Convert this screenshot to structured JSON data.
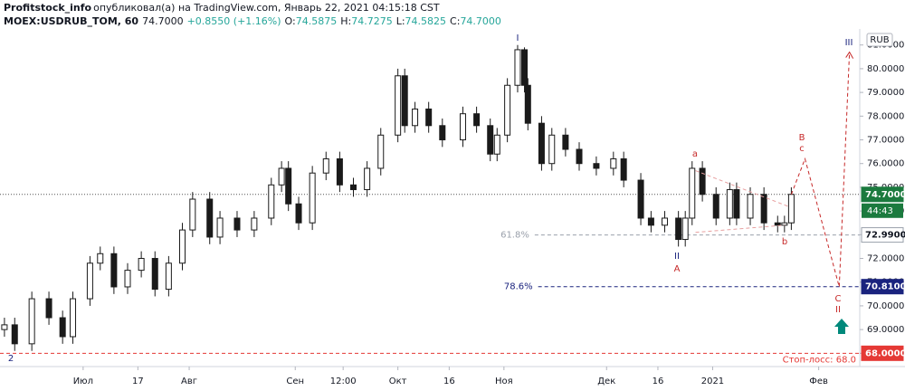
{
  "header": {
    "author": "Profitstock_info",
    "published": "опубликовал(а) на TradingView.com, Январь 22, 2021 04:15:18 CST",
    "symbol": "MOEX:USDRUB_TOM, 60",
    "last": "74.7000",
    "change": "+0.8550 (+1.16%)",
    "open_label": "O:",
    "open": "74.5875",
    "high_label": "H:",
    "high": "74.7275",
    "low_label": "L:",
    "low": "74.5825",
    "close_label": "C:",
    "close": "74.7000"
  },
  "chart_data": {
    "type": "candlestick",
    "currency": "RUB",
    "color": "#1a1a1a",
    "xlim": [
      -24.3,
      227
    ],
    "ylim": [
      67.44,
      82.21
    ],
    "xticks": [
      {
        "value": 0,
        "label": "Июл"
      },
      {
        "value": 16,
        "label": "17"
      },
      {
        "value": 31,
        "label": "Авг"
      },
      {
        "value": 62,
        "label": "Сен"
      },
      {
        "value": 76,
        "label": "12:00"
      },
      {
        "value": 92,
        "label": "Окт"
      },
      {
        "value": 107,
        "label": "16"
      },
      {
        "value": 123,
        "label": "Ноя"
      },
      {
        "value": 153,
        "label": "Дек"
      },
      {
        "value": 168,
        "label": "16"
      },
      {
        "value": 184,
        "label": "2021"
      },
      {
        "value": 215,
        "label": "Фев"
      }
    ],
    "yticks": [
      {
        "value": 68,
        "label": "68.0000"
      },
      {
        "value": 69,
        "label": "69.0000"
      },
      {
        "value": 70,
        "label": "70.0000"
      },
      {
        "value": 71,
        "label": "71.0000"
      },
      {
        "value": 72,
        "label": "72.0000"
      },
      {
        "value": 73,
        "label": "73.0000"
      },
      {
        "value": 74,
        "label": "74.0000"
      },
      {
        "value": 75,
        "label": "75.0000"
      },
      {
        "value": 76,
        "label": "76.0000"
      },
      {
        "value": 77,
        "label": "77.0000"
      },
      {
        "value": 78,
        "label": "78.0000"
      },
      {
        "value": 79,
        "label": "79.0000"
      },
      {
        "value": 80,
        "label": "80.0000"
      },
      {
        "value": 81,
        "label": "81.0000"
      }
    ],
    "x": [
      -23,
      -20,
      -15,
      -10,
      -6,
      -3,
      2,
      5,
      9,
      13,
      17,
      21,
      25,
      29,
      32,
      37,
      40,
      45,
      50,
      55,
      58,
      60,
      63,
      67,
      71,
      75,
      79,
      83,
      87,
      92,
      94,
      97,
      101,
      105,
      111,
      115,
      119,
      121,
      124,
      127,
      129,
      130,
      134,
      137,
      141,
      145,
      150,
      155,
      158,
      163,
      166,
      170,
      174,
      176,
      178,
      181,
      185,
      189,
      191,
      195,
      199,
      203,
      205,
      207
    ],
    "open": [
      69.0,
      69.2,
      68.4,
      70.3,
      69.5,
      68.7,
      70.3,
      71.8,
      72.2,
      70.8,
      71.5,
      72.0,
      70.7,
      71.8,
      73.2,
      74.5,
      72.9,
      73.7,
      73.2,
      73.7,
      75.1,
      75.8,
      74.3,
      73.5,
      75.6,
      76.2,
      75.1,
      74.9,
      75.8,
      77.2,
      79.7,
      77.6,
      78.3,
      77.6,
      77.0,
      78.1,
      77.6,
      76.4,
      77.2,
      79.3,
      80.8,
      79.3,
      77.7,
      76.0,
      77.2,
      76.6,
      76.0,
      75.8,
      76.2,
      75.3,
      73.7,
      73.4,
      73.7,
      72.8,
      73.7,
      75.8,
      74.7,
      73.7,
      74.9,
      73.7,
      74.7,
      73.5,
      73.4,
      73.5
    ],
    "high": [
      69.5,
      69.5,
      70.6,
      70.6,
      69.8,
      70.6,
      72.1,
      72.5,
      72.5,
      71.8,
      72.3,
      72.3,
      72.1,
      73.5,
      74.8,
      74.8,
      74.0,
      74.0,
      74.0,
      75.4,
      76.1,
      76.1,
      74.6,
      75.9,
      76.5,
      76.5,
      75.4,
      76.1,
      77.5,
      80.0,
      80.0,
      78.6,
      78.6,
      77.9,
      78.4,
      78.4,
      77.9,
      77.5,
      79.6,
      81.0,
      80.9,
      79.6,
      78.0,
      77.5,
      77.5,
      76.9,
      76.3,
      76.5,
      76.5,
      75.6,
      74.0,
      74.0,
      74.0,
      74.0,
      76.1,
      76.1,
      75.0,
      75.2,
      75.2,
      75.0,
      75.0,
      73.8,
      73.8,
      75.0
    ],
    "low": [
      68.7,
      68.1,
      68.1,
      69.2,
      68.4,
      68.4,
      70.0,
      71.5,
      70.5,
      70.5,
      71.2,
      70.4,
      70.4,
      71.5,
      72.9,
      72.6,
      72.6,
      72.9,
      72.9,
      73.4,
      74.8,
      74.0,
      73.2,
      73.2,
      75.3,
      74.8,
      74.6,
      74.6,
      75.5,
      76.9,
      77.3,
      77.3,
      77.3,
      76.7,
      76.7,
      77.3,
      76.1,
      76.1,
      76.9,
      79.0,
      79.0,
      77.4,
      75.7,
      75.7,
      76.3,
      75.7,
      75.5,
      75.5,
      75.0,
      73.4,
      73.1,
      73.1,
      72.5,
      72.5,
      73.4,
      74.4,
      73.4,
      73.4,
      73.4,
      73.4,
      73.2,
      73.1,
      73.1,
      73.2
    ],
    "close": [
      69.2,
      68.4,
      70.3,
      69.5,
      68.7,
      70.3,
      71.8,
      72.2,
      70.8,
      71.5,
      72.0,
      70.7,
      71.8,
      73.2,
      74.5,
      72.9,
      73.7,
      73.2,
      73.7,
      75.1,
      75.8,
      74.3,
      73.5,
      75.6,
      76.2,
      75.1,
      74.9,
      75.8,
      77.2,
      79.7,
      77.6,
      78.3,
      77.6,
      77.0,
      78.1,
      77.6,
      76.4,
      77.2,
      79.3,
      80.8,
      79.3,
      77.7,
      76.0,
      77.2,
      76.6,
      76.0,
      75.8,
      76.2,
      75.3,
      73.7,
      73.4,
      73.7,
      72.8,
      73.7,
      75.8,
      74.7,
      73.7,
      74.9,
      73.7,
      74.7,
      73.5,
      73.4,
      73.5,
      74.7
    ],
    "last_price": {
      "value": 74.7,
      "label": "74.7000",
      "countdown": "44:43",
      "color": "#1b7a3e"
    },
    "fib_levels": [
      {
        "ratio": "61.8%",
        "value": 72.99,
        "label": "72.9900",
        "x_start": 132,
        "color": "#9aa0ab"
      },
      {
        "ratio": "78.6%",
        "value": 70.81,
        "label": "70.8100",
        "x_start": 133,
        "color": "#1a237e"
      }
    ],
    "stop_loss": {
      "text": "Стоп-лосс: 68.0",
      "value": 68.0,
      "label": "68.0000",
      "color": "#e53935"
    },
    "trendlines": [
      {
        "x": [
          179,
          206
        ],
        "values": [
          75.7,
          74.2
        ]
      },
      {
        "x": [
          179,
          205
        ],
        "values": [
          73.1,
          73.4
        ]
      }
    ],
    "forecast": {
      "x": [
        207,
        211,
        221,
        224
      ],
      "values": [
        74.7,
        76.2,
        70.8,
        80.7
      ],
      "color": "#c62828"
    },
    "annotations": [
      "I",
      "II",
      "A",
      "a",
      "b",
      "B",
      "c",
      "C",
      "II",
      "III",
      "2"
    ]
  }
}
